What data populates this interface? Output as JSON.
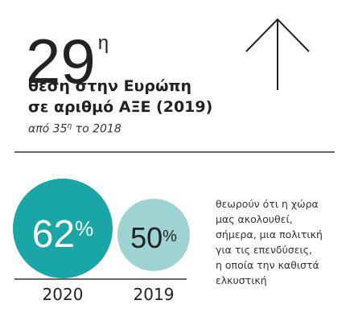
{
  "headline": {
    "number": "29",
    "suffix": "η"
  },
  "title_lines": [
    "θέση στην Ευρώπη",
    "σε αριθμό ΑΞΕ (2019)"
  ],
  "subtitle": {
    "before": "από 35",
    "suffix": "η",
    "after": " το 2018"
  },
  "stats": [
    {
      "value": "62",
      "unit": "%",
      "year": "2020"
    },
    {
      "value": "50",
      "unit": "%",
      "year": "2019"
    }
  ],
  "description_lines": [
    "θεωρούν ότι η χώρα",
    "μας ακολουθεί,",
    "σήμερα, μια πολιτική",
    "για τις επενδύσεις,",
    "η οποία την καθιστά",
    "ελκυστική"
  ]
}
